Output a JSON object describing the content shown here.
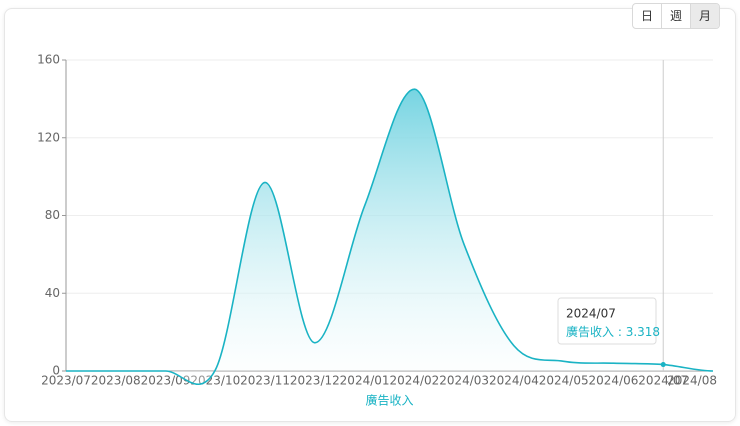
{
  "controls": [
    "日",
    "週",
    "月"
  ],
  "active_control": 2,
  "chart_data": {
    "type": "line",
    "x_label": "廣告收入",
    "categories": [
      "2023/07",
      "2023/08",
      "2023/09",
      "2023/10",
      "2023/11",
      "2023/12",
      "2024/01",
      "2024/02",
      "2024/03",
      "2024/04",
      "2024/05",
      "2024/06",
      "2024/07",
      "2024/08"
    ],
    "series": [
      {
        "name": "廣告收入",
        "color": "#1ab3c4",
        "values": [
          0,
          0,
          0,
          0.5,
          97,
          14.5,
          85,
          145,
          65,
          13,
          5,
          4,
          3.318,
          0
        ]
      }
    ],
    "ylim": [
      0,
      160
    ],
    "yticks": [
      0,
      40,
      80,
      120,
      160
    ],
    "grid": true,
    "tooltip": {
      "index": 12,
      "separator": " : "
    }
  }
}
